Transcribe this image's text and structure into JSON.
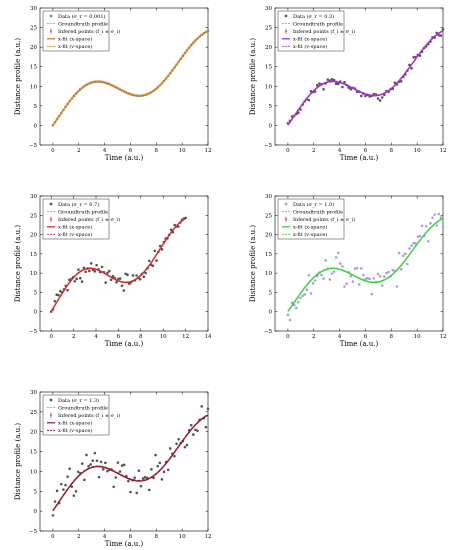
{
  "chart_data": [
    {
      "type": "scatter",
      "xlabel": "Time (a.u.)",
      "ylabel": "Distance profile (a.u.)",
      "xlim": [
        -1,
        12
      ],
      "ylim": [
        -5,
        30
      ],
      "xticks": [
        0,
        2,
        4,
        6,
        8,
        10,
        12
      ],
      "yticks": [
        -5,
        0,
        5,
        10,
        15,
        20,
        25,
        30
      ],
      "legend_location": "top-left",
      "legend": [
        "Data (σ_r = 0.001)",
        "Groundtruth profile",
        "Infered points (f_i ± σ_i)",
        "x-fit (x-space)",
        "x-fit (v-space)"
      ],
      "colors": {
        "data": "#888888",
        "x_fit": "#cc7a1f",
        "v_fit": "#e69a2e",
        "truth": "#9aa0ff",
        "infer": "#cc2222"
      },
      "noise_sd": 0.001,
      "x_max": 12
    },
    {
      "type": "scatter",
      "xlabel": "Time (a.u.)",
      "ylabel": "Distance profile (a.u.)",
      "xlim": [
        -1,
        12
      ],
      "ylim": [
        -5,
        30
      ],
      "xticks": [
        0,
        2,
        4,
        6,
        8,
        10,
        12
      ],
      "yticks": [
        -5,
        0,
        5,
        10,
        15,
        20,
        25,
        30
      ],
      "legend_location": "top-left",
      "legend": [
        "Data (σ_r = 0.3)",
        "Groundtruth profile",
        "Infered points (f_i ± σ_i)",
        "x-fit (x-space)",
        "x-fit (v-space)"
      ],
      "colors": {
        "data": "#555555",
        "x_fit": "#a020c8",
        "v_fit": "#c040e0",
        "truth": "#9aa0ff",
        "infer": "#cc2222"
      },
      "noise_sd": 0.3,
      "x_max": 12
    },
    {
      "type": "scatter",
      "xlabel": "Time (a.u.)",
      "ylabel": "Distance profile (a.u.)",
      "xlim": [
        -1,
        14
      ],
      "ylim": [
        -5,
        30
      ],
      "xticks": [
        0,
        2,
        4,
        6,
        8,
        10,
        12,
        14
      ],
      "yticks": [
        -5,
        0,
        5,
        10,
        15,
        20,
        25,
        30
      ],
      "legend_location": "top-left",
      "legend": [
        "Data (σ_r = 0.7)",
        "Groundtruth profile",
        "Infered points (f_i ± σ_i)",
        "x-fit (x-space)",
        "x-fit (v-space)"
      ],
      "colors": {
        "data": "#555555",
        "x_fit": "#cc1f1f",
        "v_fit": "#e04040",
        "truth": "#9aa0ff",
        "infer": "#cc2222"
      },
      "noise_sd": 0.7,
      "x_max": 12
    },
    {
      "type": "scatter",
      "xlabel": "Time (a.u.)",
      "ylabel": "Distance profile (a.u.)",
      "xlim": [
        -1,
        12
      ],
      "ylim": [
        -5,
        30
      ],
      "xticks": [
        0,
        2,
        4,
        6,
        8,
        10,
        12
      ],
      "yticks": [
        -5,
        0,
        5,
        10,
        15,
        20,
        25,
        30
      ],
      "legend_location": "top-left",
      "legend": [
        "Data (σ_r = 1.0)",
        "Groundtruth profile",
        "Infered points (f_i ± σ_i)",
        "x-fit (x-space)",
        "x-fit (v-space)"
      ],
      "colors": {
        "data": "#a8a0e0",
        "x_fit": "#33cc33",
        "v_fit": "#55dd55",
        "truth": "#9aa0ff",
        "infer": "#cc2222"
      },
      "noise_sd": 1.0,
      "x_max": 12
    },
    {
      "type": "scatter",
      "xlabel": "Time (a.u.)",
      "ylabel": "Distance profile (a.u.)",
      "xlim": [
        -1,
        12
      ],
      "ylim": [
        -5,
        30
      ],
      "xticks": [
        0,
        2,
        4,
        6,
        8,
        10,
        12
      ],
      "yticks": [
        -5,
        0,
        5,
        10,
        15,
        20,
        25,
        30
      ],
      "legend_location": "top-left",
      "legend": [
        "Data (σ_r = 1.3)",
        "Groundtruth profile",
        "Infered points (f_i ± σ_i)",
        "x-fit (x-space)",
        "x-fit (v-space)"
      ],
      "colors": {
        "data": "#555555",
        "x_fit": "#8b1a2a",
        "v_fit": "#a02030",
        "truth": "#9aa0ff",
        "infer": "#cc2222"
      },
      "noise_sd": 1.3,
      "x_max": 12
    }
  ]
}
